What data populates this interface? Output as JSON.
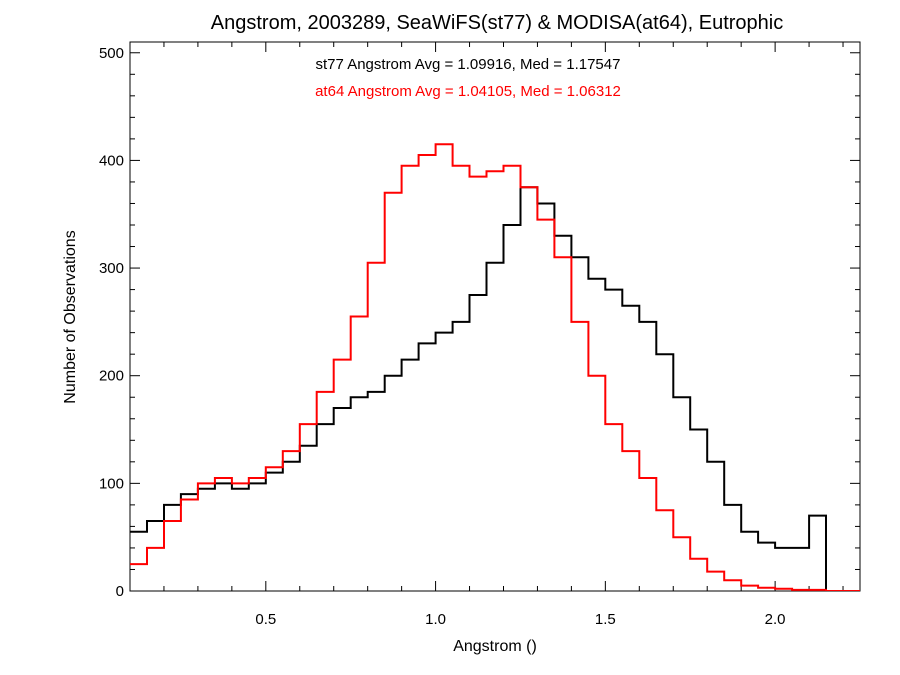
{
  "chart_data": {
    "type": "histogram",
    "title": "Angstrom, 2003289, SeaWiFS(st77) & MODISA(at64), Eutrophic",
    "xlabel": "Angstrom ()",
    "ylabel": "Number of Observations",
    "xlim": [
      0.1,
      2.25
    ],
    "ylim": [
      0,
      510
    ],
    "xticks": [
      0.5,
      1.0,
      1.5,
      2.0
    ],
    "xtick_labels": [
      "0.5",
      "1.0",
      "1.5",
      "2.0"
    ],
    "yticks": [
      0,
      100,
      200,
      300,
      400,
      500
    ],
    "ytick_labels": [
      "0",
      "100",
      "200",
      "300",
      "400",
      "500"
    ],
    "grid": false,
    "annotations": [
      {
        "text": "st77 Angstrom Avg = 1.09916, Med = 1.17547",
        "color": "#000000"
      },
      {
        "text": "at64 Angstrom Avg = 1.04105, Med = 1.06312",
        "color": "#ff0000"
      }
    ],
    "series": [
      {
        "color": "#000000",
        "bin_width": 0.05,
        "x": [
          0.1,
          0.15,
          0.2,
          0.25,
          0.3,
          0.35,
          0.4,
          0.45,
          0.5,
          0.55,
          0.6,
          0.65,
          0.7,
          0.75,
          0.8,
          0.85,
          0.9,
          0.95,
          1.0,
          1.05,
          1.1,
          1.15,
          1.2,
          1.25,
          1.3,
          1.35,
          1.4,
          1.45,
          1.5,
          1.55,
          1.6,
          1.65,
          1.7,
          1.75,
          1.8,
          1.85,
          1.9,
          1.95,
          2.0,
          2.05,
          2.1,
          2.15,
          2.2
        ],
        "y": [
          55,
          65,
          80,
          90,
          95,
          100,
          95,
          100,
          110,
          120,
          135,
          155,
          170,
          180,
          185,
          200,
          215,
          230,
          240,
          250,
          275,
          305,
          340,
          375,
          360,
          330,
          310,
          290,
          280,
          265,
          250,
          220,
          180,
          150,
          120,
          80,
          55,
          45,
          40,
          40,
          70,
          0,
          0
        ]
      },
      {
        "color": "#ff0000",
        "bin_width": 0.05,
        "x": [
          0.1,
          0.15,
          0.2,
          0.25,
          0.3,
          0.35,
          0.4,
          0.45,
          0.5,
          0.55,
          0.6,
          0.65,
          0.7,
          0.75,
          0.8,
          0.85,
          0.9,
          0.95,
          1.0,
          1.05,
          1.1,
          1.15,
          1.2,
          1.25,
          1.3,
          1.35,
          1.4,
          1.45,
          1.5,
          1.55,
          1.6,
          1.65,
          1.7,
          1.75,
          1.8,
          1.85,
          1.9,
          1.95,
          2.0,
          2.05,
          2.1,
          2.15,
          2.2
        ],
        "y": [
          25,
          40,
          65,
          85,
          100,
          105,
          100,
          105,
          115,
          130,
          155,
          185,
          215,
          255,
          305,
          370,
          395,
          405,
          415,
          395,
          385,
          390,
          395,
          375,
          345,
          310,
          250,
          200,
          155,
          130,
          105,
          75,
          50,
          30,
          18,
          10,
          5,
          3,
          2,
          1,
          1,
          0,
          0
        ]
      }
    ]
  }
}
